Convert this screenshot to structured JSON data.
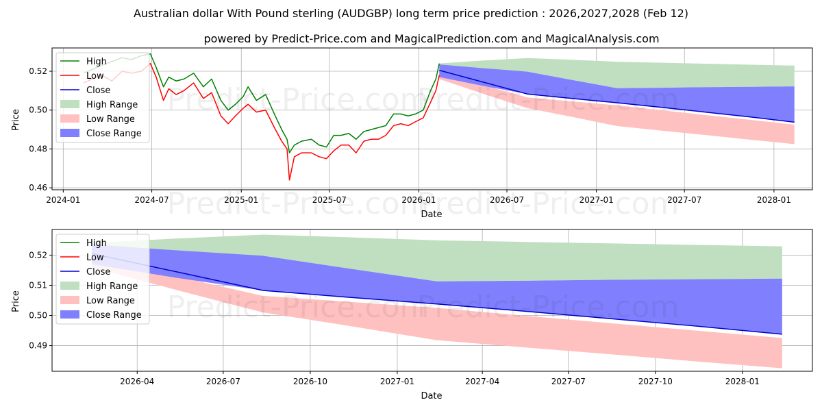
{
  "title_line1": "Australian dollar With Pound sterling (AUDGBP) long term price prediction : 2026,2027,2028 (Feb 12)",
  "title_line2": "powered by Predict-Price.com and MagicalPrediction.com and MagicalAnalysis.com",
  "watermark": "Predict-Price.com",
  "colors": {
    "high": "#008000",
    "low": "#ff0000",
    "close": "#0000cc",
    "high_range": "#c0dfc0",
    "low_range": "#ffc0c0",
    "close_range": "#8080ff"
  },
  "chart_data": [
    {
      "type": "line",
      "panel": "top",
      "xlabel": "Date",
      "ylabel": "Price",
      "xlim": [
        "2023-12-09",
        "2028-03-20"
      ],
      "ylim": [
        0.459,
        0.532
      ],
      "xticks": [
        {
          "date": "2024-01-01",
          "label": "2024-01"
        },
        {
          "date": "2024-07-01",
          "label": "2024-07"
        },
        {
          "date": "2025-01-01",
          "label": "2025-01"
        },
        {
          "date": "2025-07-01",
          "label": "2025-07"
        },
        {
          "date": "2026-01-01",
          "label": "2026-01"
        },
        {
          "date": "2026-07-01",
          "label": "2026-07"
        },
        {
          "date": "2027-01-01",
          "label": "2027-01"
        },
        {
          "date": "2027-07-01",
          "label": "2027-07"
        },
        {
          "date": "2028-01-01",
          "label": "2028-01"
        }
      ],
      "yticks": [
        {
          "value": 0.46,
          "label": "0.46"
        },
        {
          "value": 0.48,
          "label": "0.48"
        },
        {
          "value": 0.5,
          "label": "0.50"
        },
        {
          "value": 0.52,
          "label": "0.52"
        }
      ],
      "legend": [
        "High",
        "Low",
        "Close",
        "High Range",
        "Low Range",
        "Close Range"
      ],
      "legend_position": "upper-left",
      "history": {
        "dates": [
          "2024-02-12",
          "2024-03-01",
          "2024-03-20",
          "2024-04-10",
          "2024-05-01",
          "2024-05-20",
          "2024-06-10",
          "2024-06-28",
          "2024-07-10",
          "2024-07-25",
          "2024-08-05",
          "2024-08-20",
          "2024-09-05",
          "2024-09-25",
          "2024-10-15",
          "2024-11-01",
          "2024-11-20",
          "2024-12-05",
          "2024-12-20",
          "2025-01-05",
          "2025-01-15",
          "2025-02-01",
          "2025-02-20",
          "2025-03-10",
          "2025-03-25",
          "2025-04-05",
          "2025-04-10",
          "2025-04-20",
          "2025-05-05",
          "2025-05-25",
          "2025-06-10",
          "2025-06-25",
          "2025-07-10",
          "2025-07-25",
          "2025-08-10",
          "2025-08-25",
          "2025-09-10",
          "2025-09-25",
          "2025-10-10",
          "2025-10-25",
          "2025-11-10",
          "2025-11-25",
          "2025-12-10",
          "2025-12-25",
          "2026-01-10",
          "2026-01-25",
          "2026-02-05",
          "2026-02-12"
        ],
        "high": [
          0.519,
          0.521,
          0.523,
          0.525,
          0.527,
          0.526,
          0.528,
          0.529,
          0.522,
          0.512,
          0.517,
          0.515,
          0.516,
          0.519,
          0.512,
          0.516,
          0.505,
          0.5,
          0.503,
          0.507,
          0.512,
          0.505,
          0.508,
          0.498,
          0.49,
          0.485,
          0.478,
          0.482,
          0.484,
          0.485,
          0.482,
          0.481,
          0.487,
          0.487,
          0.488,
          0.485,
          0.489,
          0.49,
          0.491,
          0.492,
          0.498,
          0.498,
          0.497,
          0.498,
          0.5,
          0.51,
          0.516,
          0.524
        ],
        "low": [
          0.514,
          0.516,
          0.518,
          0.515,
          0.52,
          0.519,
          0.52,
          0.524,
          0.517,
          0.505,
          0.511,
          0.508,
          0.51,
          0.514,
          0.506,
          0.509,
          0.497,
          0.493,
          0.497,
          0.501,
          0.503,
          0.499,
          0.5,
          0.491,
          0.484,
          0.48,
          0.464,
          0.476,
          0.478,
          0.478,
          0.476,
          0.475,
          0.479,
          0.482,
          0.482,
          0.478,
          0.484,
          0.485,
          0.485,
          0.487,
          0.492,
          0.493,
          0.492,
          0.494,
          0.496,
          0.504,
          0.51,
          0.518
        ],
        "close": [
          0.517,
          0.518,
          0.52,
          0.52,
          0.523,
          0.522,
          0.523,
          0.527,
          0.52,
          0.508,
          0.514,
          0.511,
          0.513,
          0.517,
          0.509,
          0.512,
          0.501,
          0.497,
          0.5,
          0.504,
          0.508,
          0.502,
          0.504,
          0.495,
          0.487,
          0.483,
          0.471,
          0.479,
          0.481,
          0.481,
          0.479,
          0.478,
          0.483,
          0.485,
          0.485,
          0.482,
          0.487,
          0.488,
          0.488,
          0.49,
          0.495,
          0.496,
          0.495,
          0.496,
          0.498,
          0.507,
          0.513,
          0.521
        ]
      },
      "forecast": {
        "dates": [
          "2026-02-12",
          "2026-05-12",
          "2026-08-12",
          "2026-11-12",
          "2027-02-12",
          "2027-05-12",
          "2027-08-12",
          "2027-11-12",
          "2028-02-12"
        ],
        "close": [
          0.5205,
          0.5145,
          0.5083,
          0.506,
          0.5038,
          0.5015,
          0.499,
          0.4965,
          0.4938
        ],
        "high_range_top": [
          0.524,
          0.5255,
          0.5268,
          0.5259,
          0.5249,
          0.5244,
          0.5239,
          0.5234,
          0.5229
        ],
        "high_range_bottom": [
          0.518,
          0.519,
          0.5198,
          0.5155,
          0.5113,
          0.5115,
          0.5118,
          0.512,
          0.5122
        ],
        "low_range_top": [
          0.519,
          0.513,
          0.5065,
          0.5045,
          0.5025,
          0.5,
          0.4975,
          0.495,
          0.4925
        ],
        "low_range_bottom": [
          0.516,
          0.5085,
          0.501,
          0.4965,
          0.4918,
          0.4895,
          0.4872,
          0.4848,
          0.4825
        ],
        "close_range_top": [
          0.5235,
          0.5216,
          0.5198,
          0.5155,
          0.5113,
          0.5115,
          0.5118,
          0.512,
          0.5122
        ],
        "close_range_bottom": [
          0.517,
          0.5125,
          0.5083,
          0.506,
          0.5038,
          0.5015,
          0.499,
          0.4965,
          0.4938
        ]
      }
    },
    {
      "type": "line",
      "panel": "bottom",
      "xlabel": "Date",
      "ylabel": "Price",
      "xlim": [
        "2026-01-01",
        "2028-03-15"
      ],
      "ylim": [
        0.4815,
        0.5285
      ],
      "xticks": [
        {
          "date": "2026-04-01",
          "label": "2026-04"
        },
        {
          "date": "2026-07-01",
          "label": "2026-07"
        },
        {
          "date": "2026-10-01",
          "label": "2026-10"
        },
        {
          "date": "2027-01-01",
          "label": "2027-01"
        },
        {
          "date": "2027-04-01",
          "label": "2027-04"
        },
        {
          "date": "2027-07-01",
          "label": "2027-07"
        },
        {
          "date": "2027-10-01",
          "label": "2027-10"
        },
        {
          "date": "2028-01-01",
          "label": "2028-01"
        }
      ],
      "yticks": [
        {
          "value": 0.49,
          "label": "0.49"
        },
        {
          "value": 0.5,
          "label": "0.50"
        },
        {
          "value": 0.51,
          "label": "0.51"
        },
        {
          "value": 0.52,
          "label": "0.52"
        }
      ],
      "legend": [
        "High",
        "Low",
        "Close",
        "High Range",
        "Low Range",
        "Close Range"
      ],
      "legend_position": "upper-left",
      "forecast": {
        "dates": [
          "2026-02-12",
          "2026-05-12",
          "2026-08-12",
          "2026-11-12",
          "2027-02-12",
          "2027-05-12",
          "2027-08-12",
          "2027-11-12",
          "2028-02-12"
        ],
        "close": [
          0.5205,
          0.5145,
          0.5083,
          0.506,
          0.5038,
          0.5015,
          0.499,
          0.4965,
          0.4938
        ],
        "high_range_top": [
          0.524,
          0.5255,
          0.5268,
          0.5259,
          0.5249,
          0.5244,
          0.5239,
          0.5234,
          0.5229
        ],
        "high_range_bottom": [
          0.518,
          0.519,
          0.5198,
          0.5155,
          0.5113,
          0.5115,
          0.5118,
          0.512,
          0.5122
        ],
        "low_range_top": [
          0.519,
          0.513,
          0.5065,
          0.5045,
          0.5025,
          0.5,
          0.4975,
          0.495,
          0.4925
        ],
        "low_range_bottom": [
          0.516,
          0.5085,
          0.501,
          0.4965,
          0.4918,
          0.4895,
          0.4872,
          0.4848,
          0.4825
        ],
        "close_range_top": [
          0.5235,
          0.5216,
          0.5198,
          0.5155,
          0.5113,
          0.5115,
          0.5118,
          0.512,
          0.5122
        ],
        "close_range_bottom": [
          0.517,
          0.5125,
          0.5083,
          0.506,
          0.5038,
          0.5015,
          0.499,
          0.4965,
          0.4938
        ]
      }
    }
  ]
}
